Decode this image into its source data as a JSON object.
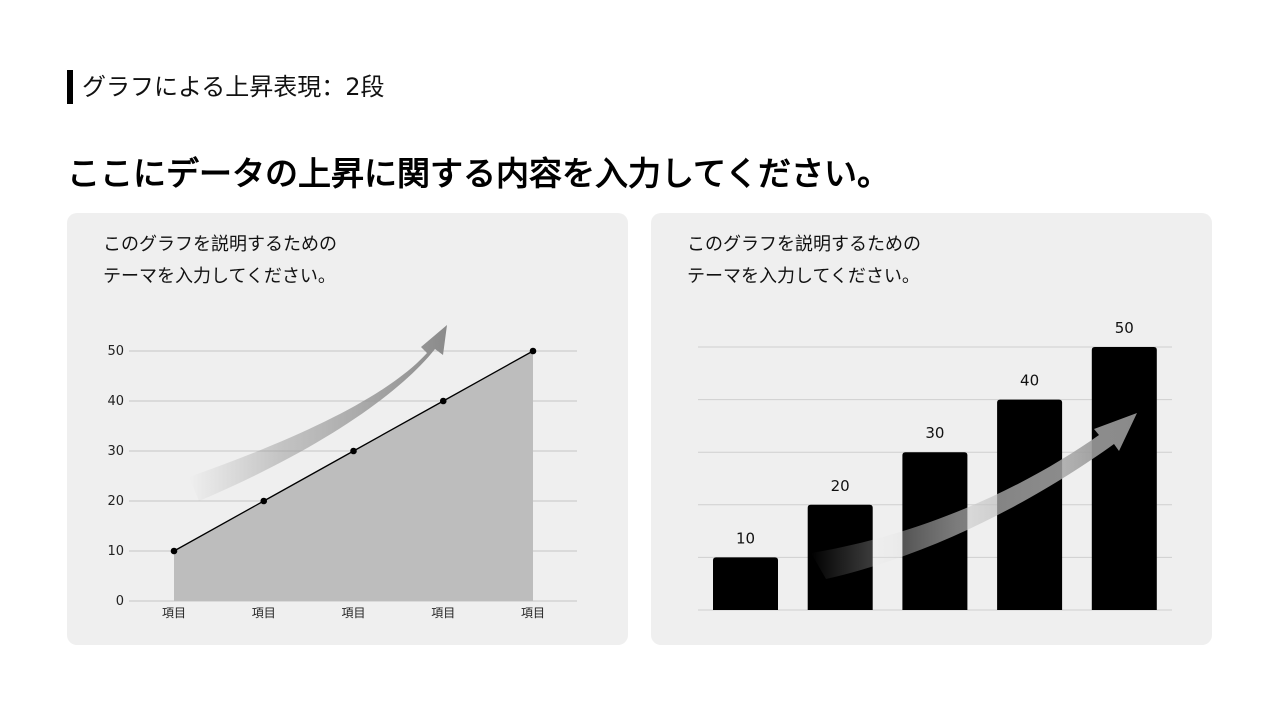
{
  "page": {
    "section_title": "グラフによる上昇表現：2段",
    "headline": "ここにデータの上昇に関する内容を入力してください。"
  },
  "cards": [
    {
      "desc_line1": "このグラフを説明するための",
      "desc_line2": "テーマを入力してください。"
    },
    {
      "desc_line1": "このグラフを説明するための",
      "desc_line2": "テーマを入力してください。"
    }
  ],
  "chart_data": [
    {
      "type": "area",
      "title": "",
      "xlabel": "",
      "ylabel": "",
      "categories": [
        "項目",
        "項目",
        "項目",
        "項目",
        "項目"
      ],
      "values": [
        10,
        20,
        30,
        40,
        50
      ],
      "ylim": [
        0,
        50
      ],
      "yticks": [
        0,
        10,
        20,
        30,
        40,
        50
      ],
      "grid": true,
      "colors": {
        "area": "#bdbdbd",
        "line": "#000000",
        "arrow": "#888888"
      }
    },
    {
      "type": "bar",
      "title": "",
      "xlabel": "",
      "ylabel": "",
      "categories": [
        "",
        "",
        "",
        "",
        ""
      ],
      "values": [
        10,
        20,
        30,
        40,
        50
      ],
      "data_labels": [
        "10",
        "20",
        "30",
        "40",
        "50"
      ],
      "ylim": [
        0,
        50
      ],
      "grid": true,
      "colors": {
        "bar": "#000000",
        "arrow": "#888888"
      }
    }
  ]
}
